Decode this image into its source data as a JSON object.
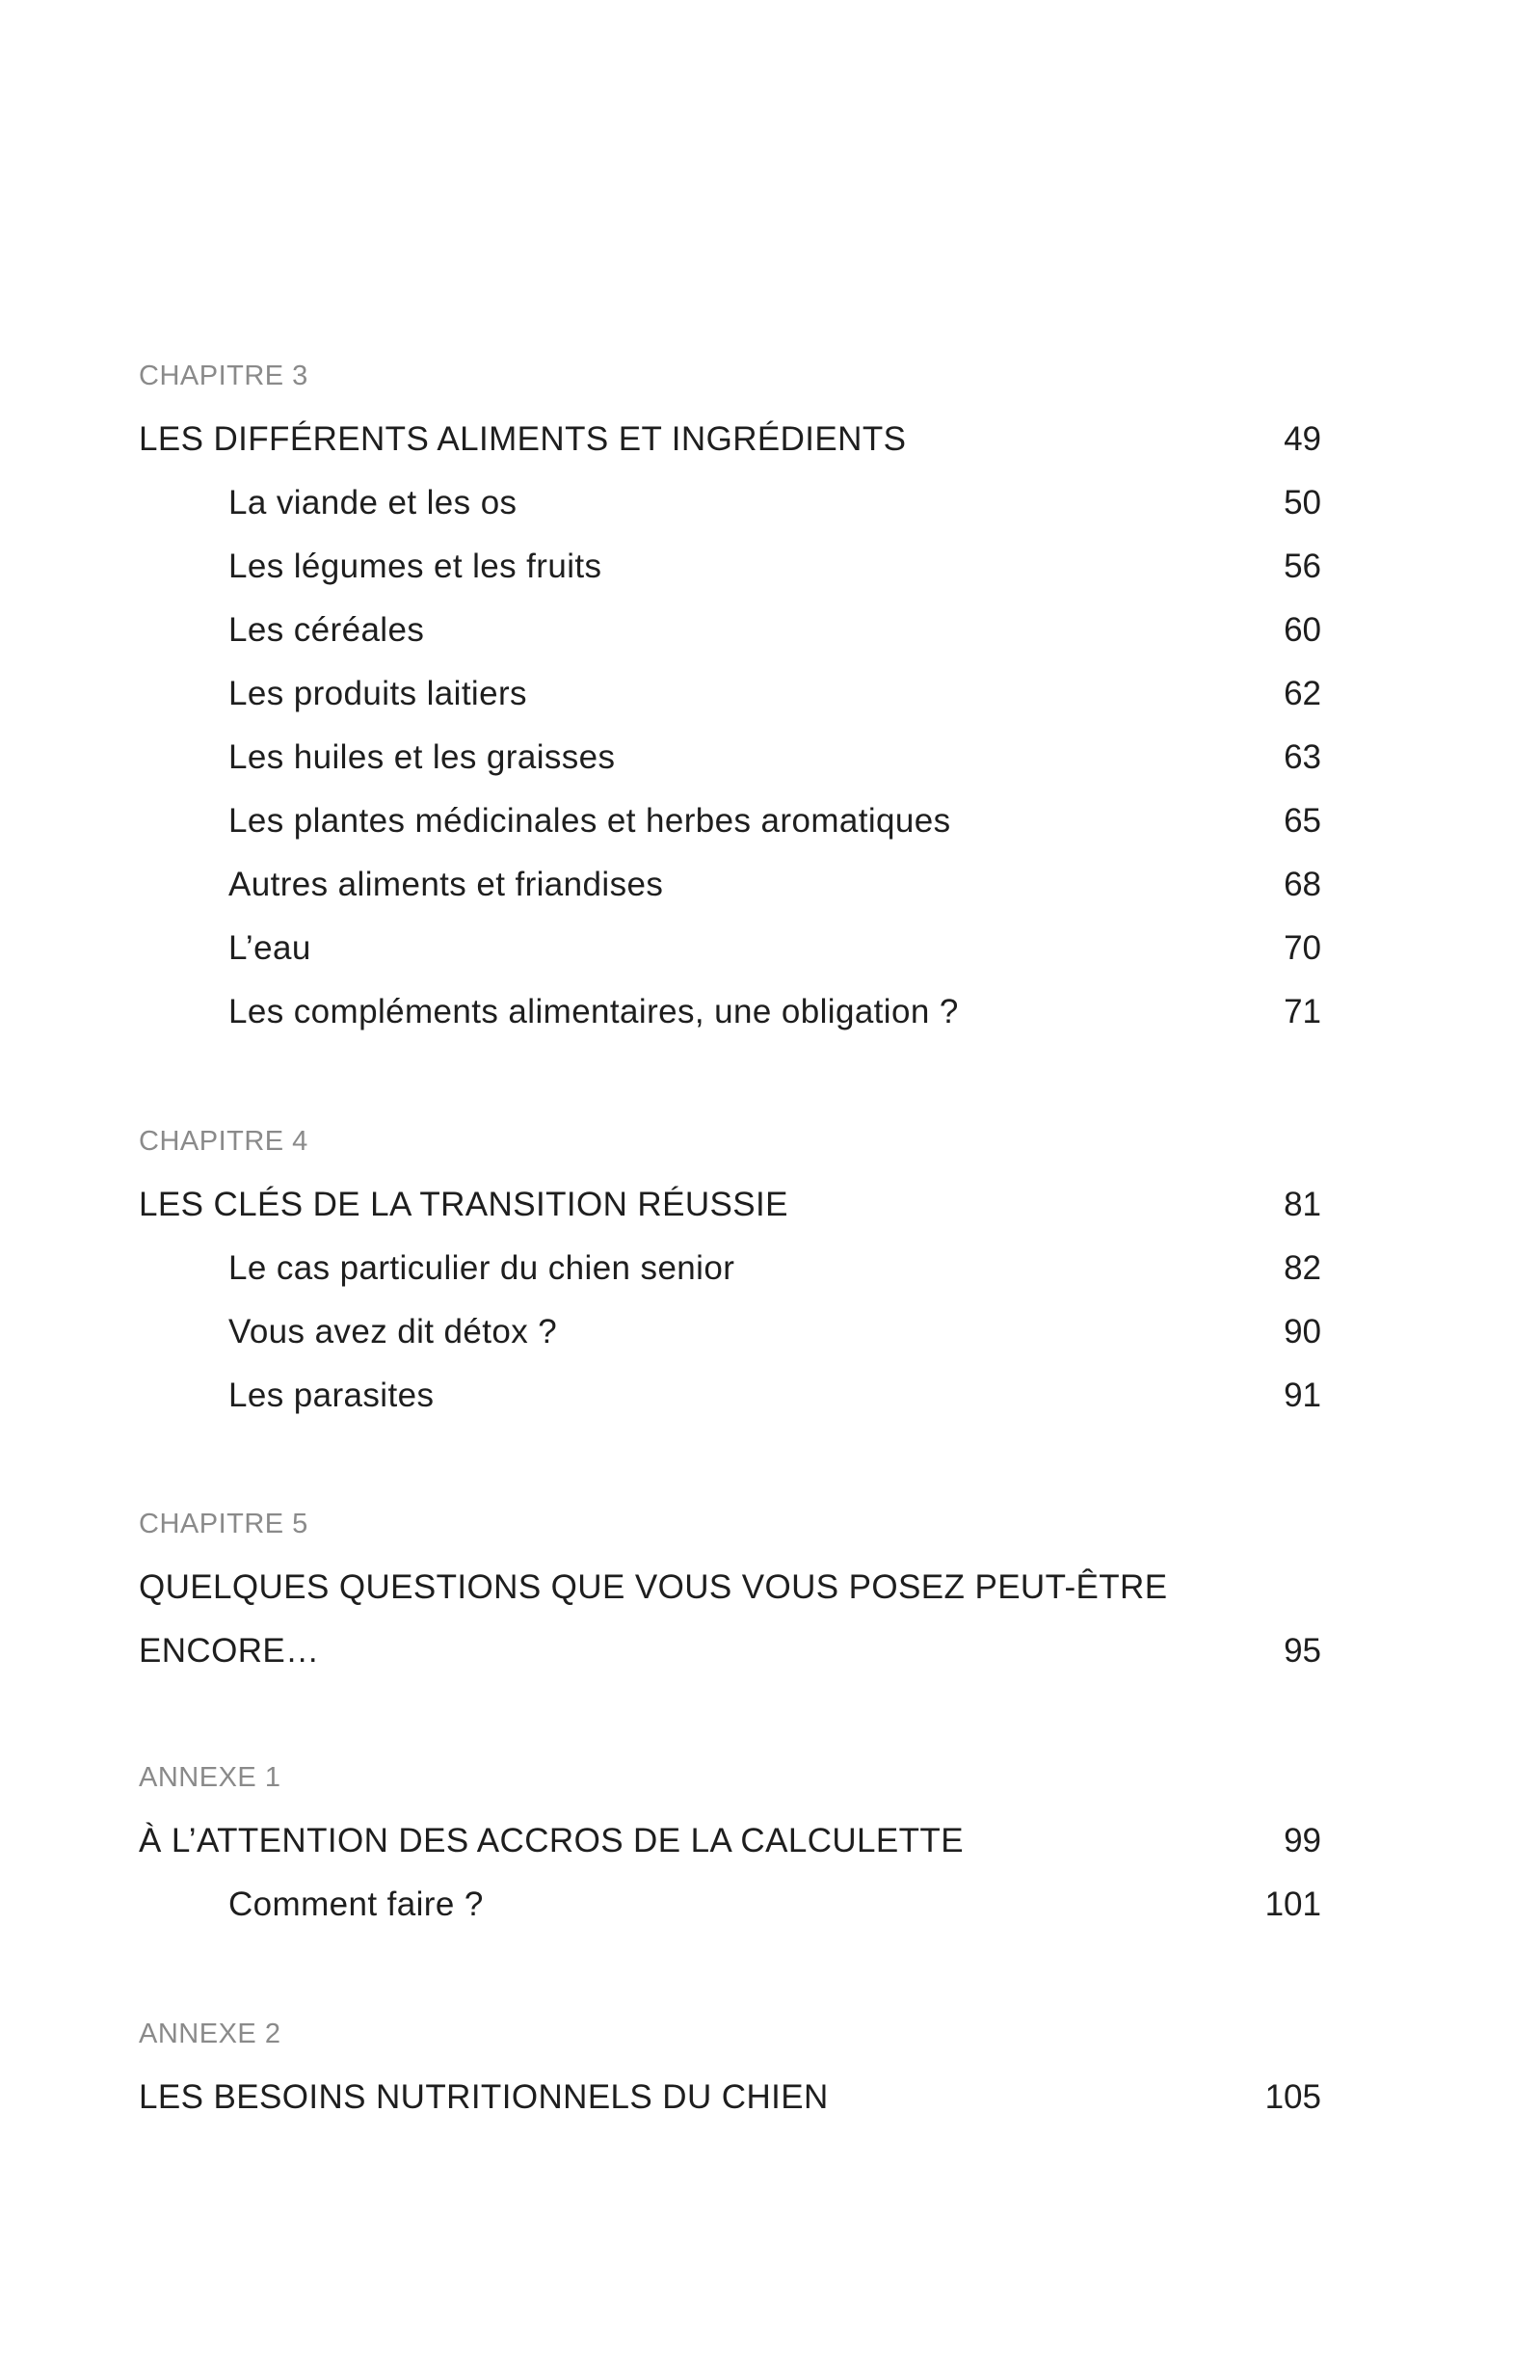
{
  "sections": [
    {
      "label": "CHAPITRE 3",
      "title": [
        "LES DIFFÉRENTS ALIMENTS ET INGRÉDIENTS"
      ],
      "page": "49",
      "items": [
        {
          "text": "La viande et les os",
          "page": "50"
        },
        {
          "text": "Les légumes et les fruits",
          "page": "56"
        },
        {
          "text": "Les céréales",
          "page": "60"
        },
        {
          "text": "Les produits laitiers",
          "page": "62"
        },
        {
          "text": "Les huiles et les graisses",
          "page": "63"
        },
        {
          "text": "Les plantes médicinales et herbes aromatiques",
          "page": "65"
        },
        {
          "text": "Autres aliments et friandises",
          "page": "68"
        },
        {
          "text": "L’eau",
          "page": "70"
        },
        {
          "text": "Les compléments alimentaires, une obligation ?",
          "page": "71"
        }
      ]
    },
    {
      "label": "CHAPITRE 4",
      "title": [
        "LES CLÉS DE LA TRANSITION RÉUSSIE"
      ],
      "page": "81",
      "items": [
        {
          "text": "Le cas particulier du chien senior",
          "page": "82"
        },
        {
          "text": "Vous avez dit détox ?",
          "page": "90"
        },
        {
          "text": "Les parasites",
          "page": "91"
        }
      ]
    },
    {
      "label": "CHAPITRE 5",
      "title": [
        "QUELQUES QUESTIONS QUE VOUS VOUS POSEZ PEUT-ÊTRE",
        "ENCORE…"
      ],
      "page": "95",
      "items": []
    },
    {
      "label": "ANNEXE 1",
      "title": [
        "À L’ATTENTION DES ACCROS DE LA CALCULETTE"
      ],
      "page": "99",
      "items": [
        {
          "text": "Comment faire ?",
          "page": "101"
        }
      ]
    },
    {
      "label": "ANNEXE 2",
      "title": [
        "LES BESOINS NUTRITIONNELS DU CHIEN"
      ],
      "page": "105",
      "items": []
    }
  ]
}
